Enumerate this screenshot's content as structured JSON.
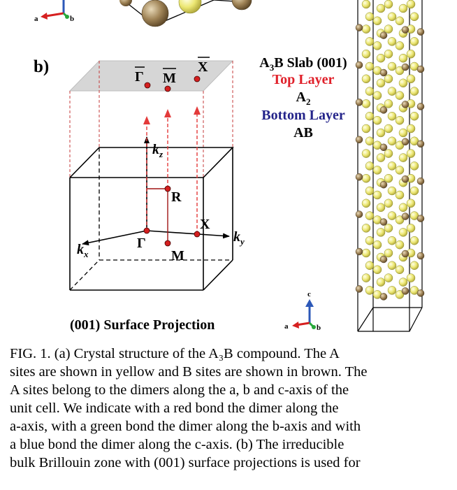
{
  "panel_b": {
    "label": "b)",
    "points": {
      "gamma_bar": "Γ",
      "m_bar": "M",
      "x_bar": "X",
      "r": "R",
      "x": "X",
      "gamma": "Γ",
      "m": "M"
    },
    "axes": {
      "kz_base": "k",
      "kz_sub": "z",
      "ky_base": "k",
      "ky_sub": "y",
      "kx_base": "k",
      "kx_sub": "x"
    },
    "projection_title": "(001) Surface Projection"
  },
  "slab_info": {
    "title_pre": "A",
    "title_sub": "3",
    "title_post": "B Slab (001)",
    "top_layer_label": "Top Layer",
    "top_layer_pre": "A",
    "top_layer_sub": "2",
    "bottom_layer_label": "Bottom Layer",
    "bottom_layer_value": "AB"
  },
  "axis_triads": {
    "a": "a",
    "b": "b",
    "c": "c"
  },
  "caption": {
    "lines": [
      "FIG. 1. (a) Crystal structure of the A₃B compound. The A",
      "sites are shown in yellow and B sites are shown in brown. The",
      "A sites belong to the dimers along the a, b and c-axis of the",
      "unit cell. We indicate with a red bond the dimer along the",
      "a-axis, with a green bond the dimer along the b-axis and with",
      "a blue bond the dimer along the c-axis. (b) The irreducible",
      "bulk Brillouin zone with (001) surface projections is used for"
    ]
  },
  "colors": {
    "a_site": "#efe870",
    "b_site": "#9c8459",
    "top_layer": "#e0202a",
    "bottom_layer": "#24248a",
    "plane": "#d9d9d9",
    "point": "#d41f1f"
  }
}
